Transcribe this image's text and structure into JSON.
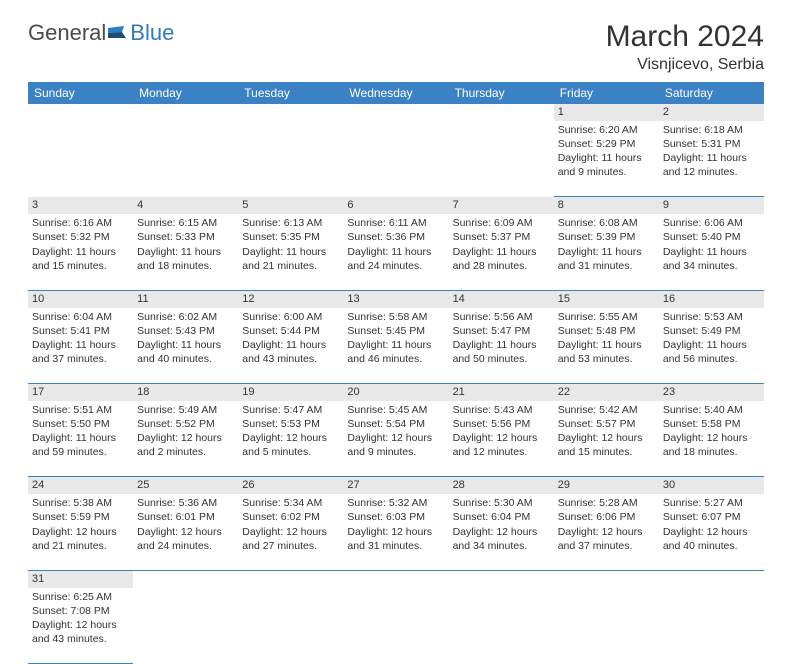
{
  "logo": {
    "general": "General",
    "blue": "Blue"
  },
  "title": "March 2024",
  "location": "Visnjicevo, Serbia",
  "colors": {
    "header_bg": "#3b82c4",
    "header_text": "#ffffff",
    "daynum_bg": "#e8e8e8",
    "border": "#3b82c4",
    "text": "#333333",
    "logo_gray": "#4a4a4a",
    "logo_blue": "#2f7bbf"
  },
  "weekdays": [
    "Sunday",
    "Monday",
    "Tuesday",
    "Wednesday",
    "Thursday",
    "Friday",
    "Saturday"
  ],
  "weeks": [
    [
      null,
      null,
      null,
      null,
      null,
      {
        "n": "1",
        "sunrise": "Sunrise: 6:20 AM",
        "sunset": "Sunset: 5:29 PM",
        "day1": "Daylight: 11 hours",
        "day2": "and 9 minutes."
      },
      {
        "n": "2",
        "sunrise": "Sunrise: 6:18 AM",
        "sunset": "Sunset: 5:31 PM",
        "day1": "Daylight: 11 hours",
        "day2": "and 12 minutes."
      }
    ],
    [
      {
        "n": "3",
        "sunrise": "Sunrise: 6:16 AM",
        "sunset": "Sunset: 5:32 PM",
        "day1": "Daylight: 11 hours",
        "day2": "and 15 minutes."
      },
      {
        "n": "4",
        "sunrise": "Sunrise: 6:15 AM",
        "sunset": "Sunset: 5:33 PM",
        "day1": "Daylight: 11 hours",
        "day2": "and 18 minutes."
      },
      {
        "n": "5",
        "sunrise": "Sunrise: 6:13 AM",
        "sunset": "Sunset: 5:35 PM",
        "day1": "Daylight: 11 hours",
        "day2": "and 21 minutes."
      },
      {
        "n": "6",
        "sunrise": "Sunrise: 6:11 AM",
        "sunset": "Sunset: 5:36 PM",
        "day1": "Daylight: 11 hours",
        "day2": "and 24 minutes."
      },
      {
        "n": "7",
        "sunrise": "Sunrise: 6:09 AM",
        "sunset": "Sunset: 5:37 PM",
        "day1": "Daylight: 11 hours",
        "day2": "and 28 minutes."
      },
      {
        "n": "8",
        "sunrise": "Sunrise: 6:08 AM",
        "sunset": "Sunset: 5:39 PM",
        "day1": "Daylight: 11 hours",
        "day2": "and 31 minutes."
      },
      {
        "n": "9",
        "sunrise": "Sunrise: 6:06 AM",
        "sunset": "Sunset: 5:40 PM",
        "day1": "Daylight: 11 hours",
        "day2": "and 34 minutes."
      }
    ],
    [
      {
        "n": "10",
        "sunrise": "Sunrise: 6:04 AM",
        "sunset": "Sunset: 5:41 PM",
        "day1": "Daylight: 11 hours",
        "day2": "and 37 minutes."
      },
      {
        "n": "11",
        "sunrise": "Sunrise: 6:02 AM",
        "sunset": "Sunset: 5:43 PM",
        "day1": "Daylight: 11 hours",
        "day2": "and 40 minutes."
      },
      {
        "n": "12",
        "sunrise": "Sunrise: 6:00 AM",
        "sunset": "Sunset: 5:44 PM",
        "day1": "Daylight: 11 hours",
        "day2": "and 43 minutes."
      },
      {
        "n": "13",
        "sunrise": "Sunrise: 5:58 AM",
        "sunset": "Sunset: 5:45 PM",
        "day1": "Daylight: 11 hours",
        "day2": "and 46 minutes."
      },
      {
        "n": "14",
        "sunrise": "Sunrise: 5:56 AM",
        "sunset": "Sunset: 5:47 PM",
        "day1": "Daylight: 11 hours",
        "day2": "and 50 minutes."
      },
      {
        "n": "15",
        "sunrise": "Sunrise: 5:55 AM",
        "sunset": "Sunset: 5:48 PM",
        "day1": "Daylight: 11 hours",
        "day2": "and 53 minutes."
      },
      {
        "n": "16",
        "sunrise": "Sunrise: 5:53 AM",
        "sunset": "Sunset: 5:49 PM",
        "day1": "Daylight: 11 hours",
        "day2": "and 56 minutes."
      }
    ],
    [
      {
        "n": "17",
        "sunrise": "Sunrise: 5:51 AM",
        "sunset": "Sunset: 5:50 PM",
        "day1": "Daylight: 11 hours",
        "day2": "and 59 minutes."
      },
      {
        "n": "18",
        "sunrise": "Sunrise: 5:49 AM",
        "sunset": "Sunset: 5:52 PM",
        "day1": "Daylight: 12 hours",
        "day2": "and 2 minutes."
      },
      {
        "n": "19",
        "sunrise": "Sunrise: 5:47 AM",
        "sunset": "Sunset: 5:53 PM",
        "day1": "Daylight: 12 hours",
        "day2": "and 5 minutes."
      },
      {
        "n": "20",
        "sunrise": "Sunrise: 5:45 AM",
        "sunset": "Sunset: 5:54 PM",
        "day1": "Daylight: 12 hours",
        "day2": "and 9 minutes."
      },
      {
        "n": "21",
        "sunrise": "Sunrise: 5:43 AM",
        "sunset": "Sunset: 5:56 PM",
        "day1": "Daylight: 12 hours",
        "day2": "and 12 minutes."
      },
      {
        "n": "22",
        "sunrise": "Sunrise: 5:42 AM",
        "sunset": "Sunset: 5:57 PM",
        "day1": "Daylight: 12 hours",
        "day2": "and 15 minutes."
      },
      {
        "n": "23",
        "sunrise": "Sunrise: 5:40 AM",
        "sunset": "Sunset: 5:58 PM",
        "day1": "Daylight: 12 hours",
        "day2": "and 18 minutes."
      }
    ],
    [
      {
        "n": "24",
        "sunrise": "Sunrise: 5:38 AM",
        "sunset": "Sunset: 5:59 PM",
        "day1": "Daylight: 12 hours",
        "day2": "and 21 minutes."
      },
      {
        "n": "25",
        "sunrise": "Sunrise: 5:36 AM",
        "sunset": "Sunset: 6:01 PM",
        "day1": "Daylight: 12 hours",
        "day2": "and 24 minutes."
      },
      {
        "n": "26",
        "sunrise": "Sunrise: 5:34 AM",
        "sunset": "Sunset: 6:02 PM",
        "day1": "Daylight: 12 hours",
        "day2": "and 27 minutes."
      },
      {
        "n": "27",
        "sunrise": "Sunrise: 5:32 AM",
        "sunset": "Sunset: 6:03 PM",
        "day1": "Daylight: 12 hours",
        "day2": "and 31 minutes."
      },
      {
        "n": "28",
        "sunrise": "Sunrise: 5:30 AM",
        "sunset": "Sunset: 6:04 PM",
        "day1": "Daylight: 12 hours",
        "day2": "and 34 minutes."
      },
      {
        "n": "29",
        "sunrise": "Sunrise: 5:28 AM",
        "sunset": "Sunset: 6:06 PM",
        "day1": "Daylight: 12 hours",
        "day2": "and 37 minutes."
      },
      {
        "n": "30",
        "sunrise": "Sunrise: 5:27 AM",
        "sunset": "Sunset: 6:07 PM",
        "day1": "Daylight: 12 hours",
        "day2": "and 40 minutes."
      }
    ],
    [
      {
        "n": "31",
        "sunrise": "Sunrise: 6:25 AM",
        "sunset": "Sunset: 7:08 PM",
        "day1": "Daylight: 12 hours",
        "day2": "and 43 minutes."
      },
      null,
      null,
      null,
      null,
      null,
      null
    ]
  ]
}
